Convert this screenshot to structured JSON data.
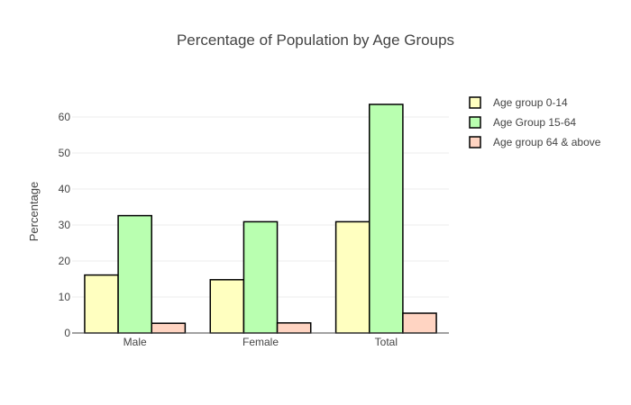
{
  "chart_data": {
    "type": "bar",
    "title": "Percentage of Population by Age Groups",
    "xlabel": "",
    "ylabel": "Percentage",
    "categories": [
      "Male",
      "Female",
      "Total"
    ],
    "ylim": [
      0,
      70
    ],
    "yticks": [
      0,
      10,
      20,
      30,
      40,
      50,
      60
    ],
    "grid": true,
    "legend_position": "top-right",
    "series": [
      {
        "name": "Age group 0-14",
        "color": "#ffffc0",
        "values": [
          16.1,
          14.8,
          30.9
        ]
      },
      {
        "name": "Age Group 15-64",
        "color": "#b9ffb0",
        "values": [
          32.6,
          30.9,
          63.5
        ]
      },
      {
        "name": "Age group 64 & above",
        "color": "#ffd4c2",
        "values": [
          2.7,
          2.8,
          5.5
        ]
      }
    ]
  }
}
